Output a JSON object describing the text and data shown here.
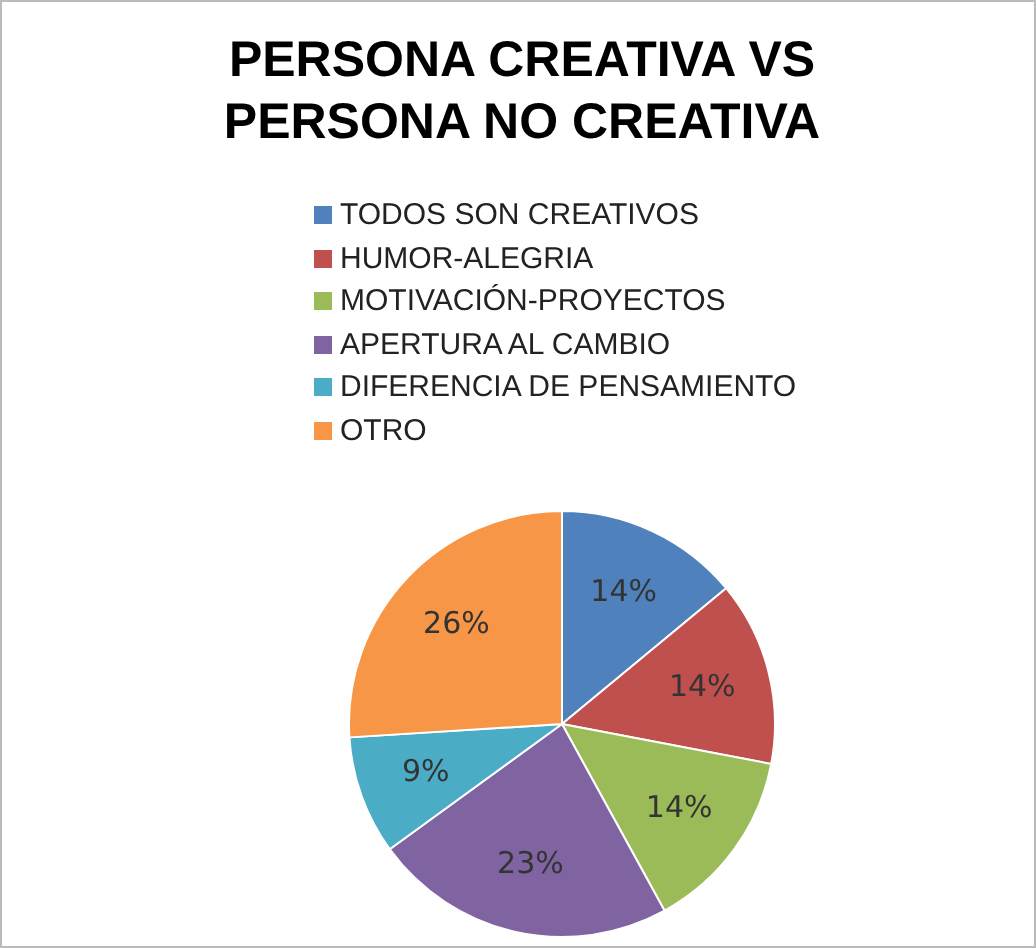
{
  "chart_data": {
    "type": "pie",
    "title": "PERSONA CREATIVA VS PERSONA NO CREATIVA",
    "categories": [
      "TODOS SON CREATIVOS",
      "HUMOR-ALEGRIA",
      "MOTIVACIÓN-PROYECTOS",
      "APERTURA AL CAMBIO",
      "DIFERENCIA DE PENSAMIENTO",
      "OTRO"
    ],
    "values": [
      14,
      14,
      14,
      23,
      9,
      26
    ],
    "colors": [
      "#4f81bd",
      "#c0504d",
      "#9bbb59",
      "#8064a2",
      "#4bacc6",
      "#f79646"
    ],
    "value_labels": [
      "14%",
      "14%",
      "14%",
      "23%",
      "9%",
      "26%"
    ],
    "legend": "top"
  }
}
